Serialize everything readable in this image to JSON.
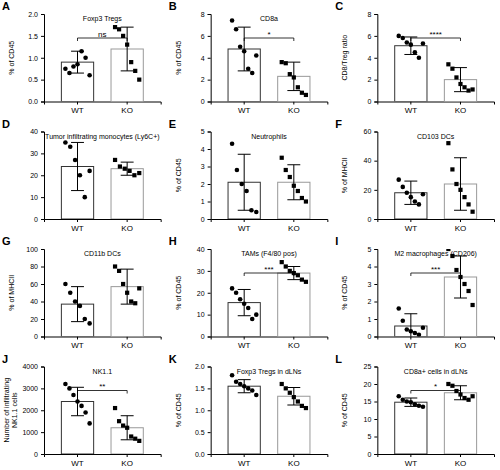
{
  "chart_data": [
    {
      "type": "bar",
      "panel_label": "A",
      "title": "Foxp3 Tregs",
      "ylabel": "% of CD45",
      "categories": [
        "WT",
        "KO"
      ],
      "values": [
        0.9,
        1.2
      ],
      "errors": [
        0.25,
        0.5
      ],
      "points": [
        [
          0.75,
          0.65,
          0.8,
          0.85,
          1.15,
          1.0,
          0.6
        ],
        [
          1.7,
          1.65,
          1.5,
          1.3,
          0.9,
          0.7,
          0.5
        ]
      ],
      "significance": "ns",
      "ylim": [
        0,
        2
      ],
      "yticks": [
        {
          "value": 0,
          "label": "0.0"
        },
        0.5,
        {
          "value": 1,
          "label": "1.0"
        },
        1.5,
        {
          "value": 2,
          "label": "2.0"
        }
      ]
    },
    {
      "type": "bar",
      "panel_label": "B",
      "title": "CD8a",
      "ylabel": "% of CD45",
      "categories": [
        "WT",
        "KO"
      ],
      "values": [
        4.8,
        2.3
      ],
      "errors": [
        2.0,
        1.3
      ],
      "points": [
        [
          7.4,
          6.6,
          5.0,
          4.6,
          3.0,
          2.6,
          4.2
        ],
        [
          3.6,
          3.5,
          2.5,
          2.2,
          1.3,
          0.8,
          0.6
        ]
      ],
      "significance": "*",
      "ylim": [
        0,
        8
      ],
      "yticks": [
        0,
        2,
        4,
        6,
        8
      ]
    },
    {
      "type": "bar",
      "panel_label": "C",
      "ylabel": "CD8/Treg ratio",
      "categories": [
        "WT",
        "KO"
      ],
      "values": [
        5.1,
        2.0
      ],
      "errors": [
        0.8,
        1.1
      ],
      "points": [
        [
          6.0,
          5.8,
          5.4,
          5.2,
          4.5,
          4.0,
          5.3
        ],
        [
          3.4,
          3.0,
          2.2,
          1.6,
          1.3,
          1.0,
          1.1
        ]
      ],
      "significance": "****",
      "ylim": [
        0,
        8
      ],
      "yticks": [
        0,
        2,
        4,
        6,
        8
      ]
    },
    {
      "type": "bar",
      "panel_label": "D",
      "title": "Tumor infiltrating monocytes (Ly6C+)",
      "categories": [
        "WT",
        "KO"
      ],
      "values": [
        24,
        23
      ],
      "errors": [
        11,
        3
      ],
      "points": [
        [
          35,
          33,
          27,
          20,
          10,
          22
        ],
        [
          27,
          24,
          23,
          22,
          20,
          21
        ]
      ],
      "ylim": [
        0,
        40
      ],
      "yticks": [
        0,
        10,
        20,
        30,
        40
      ]
    },
    {
      "type": "bar",
      "panel_label": "E",
      "title": "Neutrophils",
      "ylabel": "% of CD45",
      "categories": [
        "WT",
        "KO"
      ],
      "values": [
        2.1,
        2.1
      ],
      "errors": [
        1.6,
        1.0
      ],
      "points": [
        [
          4.3,
          2.8,
          2.0,
          1.6,
          0.5,
          0.4
        ],
        [
          3.5,
          2.8,
          2.4,
          1.9,
          1.6,
          1.2,
          1.0
        ]
      ],
      "ylim": [
        0,
        5
      ],
      "yticks": [
        0,
        1,
        2,
        3,
        4,
        5
      ]
    },
    {
      "type": "bar",
      "panel_label": "F",
      "title": "CD103 DCs",
      "ylabel": "% of MHCII",
      "categories": [
        "WT",
        "KO"
      ],
      "values": [
        18,
        24
      ],
      "errors": [
        8,
        18
      ],
      "points": [
        [
          27,
          22,
          18,
          15,
          12,
          10,
          17
        ],
        [
          52,
          34,
          24,
          20,
          15,
          10,
          5
        ]
      ],
      "ylim": [
        0,
        60
      ],
      "yticks": [
        0,
        20,
        40,
        60
      ]
    },
    {
      "type": "bar",
      "panel_label": "G",
      "title": "CD11b DCs",
      "ylabel": "% of MHCII",
      "categories": [
        "WT",
        "KO"
      ],
      "values": [
        37,
        57
      ],
      "errors": [
        20,
        20
      ],
      "points": [
        [
          60,
          50,
          40,
          35,
          20,
          15
        ],
        [
          80,
          75,
          60,
          50,
          40,
          38,
          55
        ]
      ],
      "ylim": [
        0,
        100
      ],
      "yticks": [
        0,
        20,
        40,
        60,
        80,
        100
      ]
    },
    {
      "type": "bar",
      "panel_label": "H",
      "title": "TAMs (F4/80 pos)",
      "ylabel": "% of CD45",
      "categories": [
        "WT",
        "KO"
      ],
      "values": [
        15.5,
        29
      ],
      "errors": [
        6,
        3
      ],
      "points": [
        [
          22,
          20,
          17,
          15,
          13,
          8,
          10
        ],
        [
          34,
          32,
          30,
          29,
          28,
          26,
          25
        ]
      ],
      "significance": "***",
      "ylim": [
        0,
        40
      ],
      "yticks": [
        0,
        10,
        20,
        30,
        40
      ]
    },
    {
      "type": "bar",
      "panel_label": "I",
      "title": "M2 macrophages (CD206)",
      "ylabel": "% of CD45",
      "categories": [
        "WT",
        "KO"
      ],
      "values": [
        0.6,
        3.4
      ],
      "errors": [
        0.7,
        1.2
      ],
      "points": [
        [
          1.6,
          0.9,
          0.4,
          0.3,
          0.2,
          0.1,
          0.5
        ],
        [
          5.0,
          4.6,
          3.8,
          3.4,
          3.0,
          2.6,
          1.8
        ]
      ],
      "significance": "***",
      "ylim": [
        0,
        5
      ],
      "yticks": [
        0,
        1,
        2,
        3,
        4,
        5
      ]
    },
    {
      "type": "bar",
      "panel_label": "J",
      "title": "NK1.1",
      "ylabel": "Number of infiltrating\nNK1.1 cells",
      "categories": [
        "WT",
        "KO"
      ],
      "values": [
        2400,
        1200
      ],
      "errors": [
        650,
        550
      ],
      "points": [
        [
          3200,
          3000,
          2700,
          2400,
          2200,
          1900,
          1400
        ],
        [
          2100,
          1500,
          1300,
          1200,
          800,
          700,
          600
        ]
      ],
      "significance": "**",
      "ylim": [
        0,
        4000
      ],
      "yticks": [
        0,
        1000,
        2000,
        3000,
        4000
      ]
    },
    {
      "type": "bar",
      "panel_label": "K",
      "title": "Foxp3 Tregs in dLNs",
      "ylabel": "% of CD45",
      "categories": [
        "WT",
        "KO"
      ],
      "values": [
        1.55,
        1.32
      ],
      "errors": [
        0.15,
        0.2
      ],
      "points": [
        [
          1.8,
          1.65,
          1.6,
          1.55,
          1.5,
          1.45,
          1.35
        ],
        [
          1.6,
          1.5,
          1.4,
          1.3,
          1.2,
          1.1,
          1.05
        ]
      ],
      "ylim": [
        0,
        2
      ],
      "yticks": [
        {
          "value": 0,
          "label": "0.0"
        },
        0.5,
        {
          "value": 1,
          "label": "1.0"
        },
        1.5,
        {
          "value": 2,
          "label": "2.0"
        }
      ]
    },
    {
      "type": "bar",
      "panel_label": "L",
      "title": "CD8a+ cells in dLNs",
      "ylabel": "% of CD45",
      "categories": [
        "WT",
        "KO"
      ],
      "values": [
        14.8,
        17.5
      ],
      "errors": [
        1.2,
        2.0
      ],
      "points": [
        [
          16.5,
          15.5,
          15,
          14.8,
          14.2,
          13.8,
          13.5
        ],
        [
          20,
          19.5,
          18,
          17,
          16,
          15.5,
          16.5
        ]
      ],
      "significance": "*",
      "ylim": [
        0,
        25
      ],
      "yticks": [
        0,
        5,
        10,
        15,
        20,
        25
      ]
    }
  ]
}
